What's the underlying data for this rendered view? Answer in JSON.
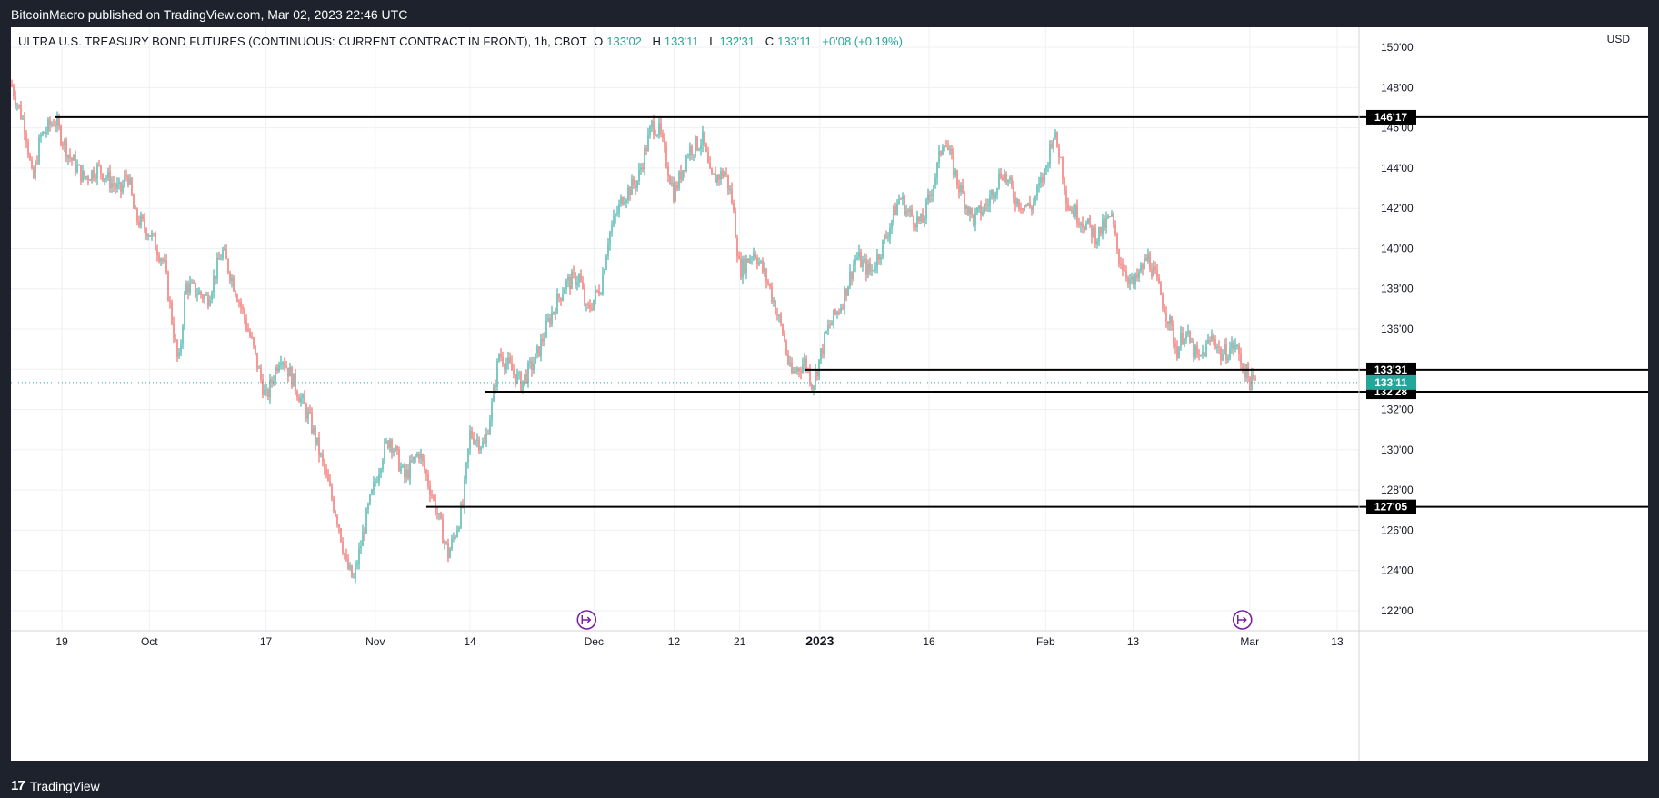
{
  "banner": "BitcoinMacro published on TradingView.com, Mar 02, 2023 22:46 UTC",
  "legend": {
    "symbol": "ULTRA U.S. TREASURY BOND FUTURES (CONTINUOUS: CURRENT CONTRACT IN FRONT), 1h, CBOT",
    "o_label": "O",
    "o_value": "133'02",
    "h_label": "H",
    "h_value": "133'11",
    "l_label": "L",
    "l_value": "132'31",
    "c_label": "C",
    "c_value": "133'11",
    "change": "+0'08 (+0.19%)"
  },
  "currency": "USD",
  "footer_logo": "TradingView",
  "colors": {
    "up": "#26a69a",
    "down": "#ef5350",
    "level": "#000000",
    "current": "#26a69a"
  },
  "chart_data": {
    "type": "candlestick",
    "title": "ULTRA U.S. TREASURY BOND FUTURES (CONTINUOUS: CURRENT CONTRACT IN FRONT), 1h, CBOT",
    "ylim": [
      121,
      151
    ],
    "y_ticks": [
      {
        "v": 122,
        "label": "122'00"
      },
      {
        "v": 124,
        "label": "124'00"
      },
      {
        "v": 126,
        "label": "126'00"
      },
      {
        "v": 128,
        "label": "128'00"
      },
      {
        "v": 130,
        "label": "130'00"
      },
      {
        "v": 132,
        "label": "132'00"
      },
      {
        "v": 134,
        "label": "134'00"
      },
      {
        "v": 136,
        "label": "136'00"
      },
      {
        "v": 138,
        "label": "138'00"
      },
      {
        "v": 140,
        "label": "140'00"
      },
      {
        "v": 142,
        "label": "142'00"
      },
      {
        "v": 144,
        "label": "144'00"
      },
      {
        "v": 146,
        "label": "146'00"
      },
      {
        "v": 148,
        "label": "148'00"
      },
      {
        "v": 150,
        "label": "150'00"
      }
    ],
    "x_range": [
      "2022-09-12",
      "2023-03-16"
    ],
    "x_ticks": [
      {
        "date": "2022-09-19",
        "label": "19"
      },
      {
        "date": "2022-10-01",
        "label": "Oct"
      },
      {
        "date": "2022-10-17",
        "label": "17"
      },
      {
        "date": "2022-11-01",
        "label": "Nov"
      },
      {
        "date": "2022-11-14",
        "label": "14"
      },
      {
        "date": "2022-12-01",
        "label": "Dec"
      },
      {
        "date": "2022-12-12",
        "label": "12"
      },
      {
        "date": "2022-12-21",
        "label": "21"
      },
      {
        "date": "2023-01-01",
        "label": "2023"
      },
      {
        "date": "2023-01-16",
        "label": "16"
      },
      {
        "date": "2023-02-01",
        "label": "Feb"
      },
      {
        "date": "2023-02-13",
        "label": "13"
      },
      {
        "date": "2023-03-01",
        "label": "Mar"
      },
      {
        "date": "2023-03-13",
        "label": "13"
      }
    ],
    "horizontal_levels": [
      {
        "value": 146.53,
        "label": "146'17",
        "start": "2022-09-18"
      },
      {
        "value": 133.97,
        "label": "133'31",
        "start": "2022-12-30"
      },
      {
        "value": 132.88,
        "label": "132'28",
        "start": "2022-11-16"
      },
      {
        "value": 127.16,
        "label": "127'05",
        "start": "2022-11-08"
      }
    ],
    "last_price": {
      "value": 133.34,
      "label": "133'11"
    },
    "event_markers": [
      "2022-11-30",
      "2023-02-28"
    ],
    "price_path": [
      {
        "date": "2022-09-12",
        "value": 148.2
      },
      {
        "date": "2022-09-14",
        "value": 146.0
      },
      {
        "date": "2022-09-15",
        "value": 143.2
      },
      {
        "date": "2022-09-16",
        "value": 145.5
      },
      {
        "date": "2022-09-18",
        "value": 146.4
      },
      {
        "date": "2022-09-20",
        "value": 144.6
      },
      {
        "date": "2022-09-22",
        "value": 143.5
      },
      {
        "date": "2022-09-24",
        "value": 144.0
      },
      {
        "date": "2022-09-27",
        "value": 142.8
      },
      {
        "date": "2022-09-28",
        "value": 143.8
      },
      {
        "date": "2022-09-29",
        "value": 141.6
      },
      {
        "date": "2022-10-01",
        "value": 140.8
      },
      {
        "date": "2022-10-03",
        "value": 139.3
      },
      {
        "date": "2022-10-05",
        "value": 134.1
      },
      {
        "date": "2022-10-06",
        "value": 138.2
      },
      {
        "date": "2022-10-09",
        "value": 137.5
      },
      {
        "date": "2022-10-11",
        "value": 139.9
      },
      {
        "date": "2022-10-13",
        "value": 137.8
      },
      {
        "date": "2022-10-15",
        "value": 135.4
      },
      {
        "date": "2022-10-17",
        "value": 132.5
      },
      {
        "date": "2022-10-19",
        "value": 134.8
      },
      {
        "date": "2022-10-21",
        "value": 133.2
      },
      {
        "date": "2022-10-23",
        "value": 131.5
      },
      {
        "date": "2022-10-25",
        "value": 129.0
      },
      {
        "date": "2022-10-27",
        "value": 126.3
      },
      {
        "date": "2022-10-28",
        "value": 124.3
      },
      {
        "date": "2022-10-29",
        "value": 123.5
      },
      {
        "date": "2022-10-31",
        "value": 127.0
      },
      {
        "date": "2022-11-02",
        "value": 129.8
      },
      {
        "date": "2022-11-03",
        "value": 130.6
      },
      {
        "date": "2022-11-05",
        "value": 128.6
      },
      {
        "date": "2022-11-07",
        "value": 129.9
      },
      {
        "date": "2022-11-09",
        "value": 127.5
      },
      {
        "date": "2022-11-11",
        "value": 124.8
      },
      {
        "date": "2022-11-12",
        "value": 125.9
      },
      {
        "date": "2022-11-13",
        "value": 127.2
      },
      {
        "date": "2022-11-14",
        "value": 130.8
      },
      {
        "date": "2022-11-16",
        "value": 130.2
      },
      {
        "date": "2022-11-17",
        "value": 132.2
      },
      {
        "date": "2022-11-18",
        "value": 134.8
      },
      {
        "date": "2022-11-21",
        "value": 133.3
      },
      {
        "date": "2022-11-23",
        "value": 134.5
      },
      {
        "date": "2022-11-25",
        "value": 136.6
      },
      {
        "date": "2022-11-27",
        "value": 138.2
      },
      {
        "date": "2022-11-29",
        "value": 138.6
      },
      {
        "date": "2022-11-30",
        "value": 136.8
      },
      {
        "date": "2022-12-02",
        "value": 138.2
      },
      {
        "date": "2022-12-03",
        "value": 140.6
      },
      {
        "date": "2022-12-05",
        "value": 142.6
      },
      {
        "date": "2022-12-07",
        "value": 143.4
      },
      {
        "date": "2022-12-09",
        "value": 146.2
      },
      {
        "date": "2022-12-10",
        "value": 145.8
      },
      {
        "date": "2022-12-12",
        "value": 142.7
      },
      {
        "date": "2022-12-14",
        "value": 144.9
      },
      {
        "date": "2022-12-16",
        "value": 145.4
      },
      {
        "date": "2022-12-17",
        "value": 143.4
      },
      {
        "date": "2022-12-19",
        "value": 143.8
      },
      {
        "date": "2022-12-20",
        "value": 142.3
      },
      {
        "date": "2022-12-21",
        "value": 138.9
      },
      {
        "date": "2022-12-23",
        "value": 139.9
      },
      {
        "date": "2022-12-25",
        "value": 138.2
      },
      {
        "date": "2022-12-27",
        "value": 135.7
      },
      {
        "date": "2022-12-28",
        "value": 133.7
      },
      {
        "date": "2022-12-30",
        "value": 134.4
      },
      {
        "date": "2022-12-31",
        "value": 133.2
      },
      {
        "date": "2023-01-02",
        "value": 135.9
      },
      {
        "date": "2023-01-04",
        "value": 137.3
      },
      {
        "date": "2023-01-06",
        "value": 139.6
      },
      {
        "date": "2023-01-08",
        "value": 138.8
      },
      {
        "date": "2023-01-10",
        "value": 140.5
      },
      {
        "date": "2023-01-12",
        "value": 142.6
      },
      {
        "date": "2023-01-13",
        "value": 141.8
      },
      {
        "date": "2023-01-15",
        "value": 141.2
      },
      {
        "date": "2023-01-17",
        "value": 143.8
      },
      {
        "date": "2023-01-18",
        "value": 145.6
      },
      {
        "date": "2023-01-20",
        "value": 143.2
      },
      {
        "date": "2023-01-22",
        "value": 141.4
      },
      {
        "date": "2023-01-24",
        "value": 142.2
      },
      {
        "date": "2023-01-26",
        "value": 143.9
      },
      {
        "date": "2023-01-28",
        "value": 142.4
      },
      {
        "date": "2023-01-30",
        "value": 142.0
      },
      {
        "date": "2023-02-01",
        "value": 143.9
      },
      {
        "date": "2023-02-02",
        "value": 145.8
      },
      {
        "date": "2023-02-03",
        "value": 144.6
      },
      {
        "date": "2023-02-04",
        "value": 142.2
      },
      {
        "date": "2023-02-06",
        "value": 141.4
      },
      {
        "date": "2023-02-08",
        "value": 140.6
      },
      {
        "date": "2023-02-10",
        "value": 141.6
      },
      {
        "date": "2023-02-11",
        "value": 139.6
      },
      {
        "date": "2023-02-13",
        "value": 138.1
      },
      {
        "date": "2023-02-15",
        "value": 139.6
      },
      {
        "date": "2023-02-16",
        "value": 138.6
      },
      {
        "date": "2023-02-18",
        "value": 136.3
      },
      {
        "date": "2023-02-19",
        "value": 134.9
      },
      {
        "date": "2023-02-20",
        "value": 135.9
      },
      {
        "date": "2023-02-22",
        "value": 134.4
      },
      {
        "date": "2023-02-24",
        "value": 135.7
      },
      {
        "date": "2023-02-25",
        "value": 134.7
      },
      {
        "date": "2023-02-27",
        "value": 135.2
      },
      {
        "date": "2023-02-28",
        "value": 134.2
      },
      {
        "date": "2023-03-01",
        "value": 133.4
      },
      {
        "date": "2023-03-02",
        "value": 133.3
      }
    ]
  }
}
